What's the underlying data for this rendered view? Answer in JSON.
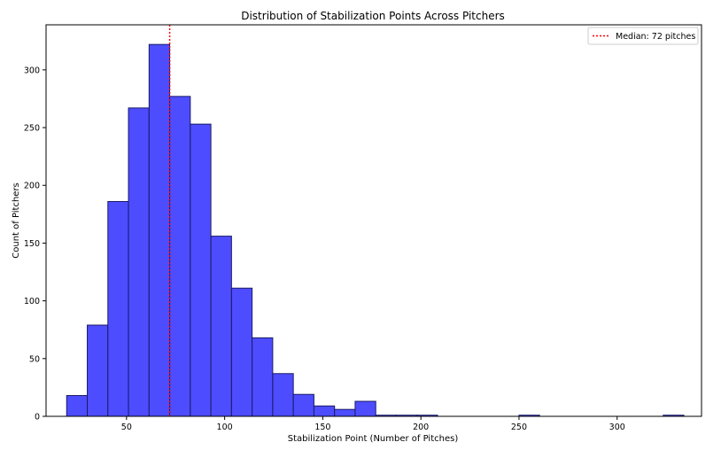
{
  "chart_data": {
    "type": "bar",
    "title": "Distribution of Stabilization Points Across Pitchers",
    "xlabel": "Stabilization Point (Number of Pitches)",
    "ylabel": "Count of Pitchers",
    "xlim": [
      9,
      343
    ],
    "ylim": [
      0,
      339
    ],
    "x_ticks": [
      50,
      100,
      150,
      200,
      250,
      300
    ],
    "y_ticks": [
      0,
      50,
      100,
      150,
      200,
      250,
      300
    ],
    "bin_width": 10.5,
    "bin_start": 19.5,
    "bins": [
      {
        "x0": 19.5,
        "x1": 30.0,
        "count": 18
      },
      {
        "x0": 30.0,
        "x1": 40.5,
        "count": 79
      },
      {
        "x0": 40.5,
        "x1": 51.0,
        "count": 186
      },
      {
        "x0": 51.0,
        "x1": 61.5,
        "count": 267
      },
      {
        "x0": 61.5,
        "x1": 72.0,
        "count": 322
      },
      {
        "x0": 72.0,
        "x1": 82.5,
        "count": 277
      },
      {
        "x0": 82.5,
        "x1": 93.0,
        "count": 253
      },
      {
        "x0": 93.0,
        "x1": 103.5,
        "count": 156
      },
      {
        "x0": 103.5,
        "x1": 114.0,
        "count": 111
      },
      {
        "x0": 114.0,
        "x1": 124.5,
        "count": 68
      },
      {
        "x0": 124.5,
        "x1": 135.0,
        "count": 37
      },
      {
        "x0": 135.0,
        "x1": 145.5,
        "count": 19
      },
      {
        "x0": 145.5,
        "x1": 156.0,
        "count": 9
      },
      {
        "x0": 156.0,
        "x1": 166.5,
        "count": 6
      },
      {
        "x0": 166.5,
        "x1": 177.0,
        "count": 13
      },
      {
        "x0": 177.0,
        "x1": 187.5,
        "count": 1
      },
      {
        "x0": 187.5,
        "x1": 198.0,
        "count": 1
      },
      {
        "x0": 198.0,
        "x1": 208.5,
        "count": 1
      },
      {
        "x0": 250.0,
        "x1": 260.5,
        "count": 1
      },
      {
        "x0": 323.5,
        "x1": 334.0,
        "count": 1
      }
    ],
    "median": 72,
    "legend": {
      "label": "Median: 72 pitches",
      "position": "top-right"
    },
    "colors": {
      "bar_fill": "#4d4dff",
      "bar_edge": "#1a1a66",
      "median_line": "#ff0000"
    },
    "grid": false
  }
}
